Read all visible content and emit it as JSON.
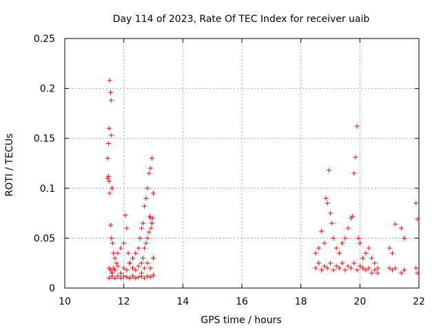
{
  "chart_data": {
    "type": "scatter",
    "title": "Day 114 of 2023, Rate Of TEC Index for receiver uaib",
    "xlabel": "GPS time / hours",
    "ylabel": "ROTI / TECUs",
    "xlim": [
      10,
      22
    ],
    "ylim": [
      0,
      0.25
    ],
    "xticks": [
      10,
      12,
      14,
      16,
      18,
      20,
      22
    ],
    "xtick_labels": [
      "10",
      "12",
      "14",
      "16",
      "18",
      "20",
      "22"
    ],
    "yticks": [
      0,
      0.05,
      0.1,
      0.15,
      0.2,
      0.25
    ],
    "ytick_labels": [
      "0",
      "0.05",
      "0.1",
      "0.15",
      "0.2",
      "0.25"
    ],
    "grid": true,
    "marker": "+",
    "color": "#ff0000",
    "series": [
      {
        "name": "ROTI",
        "x": [
          11.45,
          11.48,
          11.5,
          11.52,
          11.55,
          11.57,
          11.58,
          11.6,
          11.45,
          11.48,
          11.5,
          11.52,
          11.55,
          11.58,
          11.62,
          11.65,
          11.7,
          11.75,
          11.8,
          11.9,
          12.0,
          12.05,
          12.1,
          12.15,
          12.2,
          12.3,
          12.4,
          12.5,
          12.55,
          12.6,
          12.65,
          12.7,
          12.75,
          12.8,
          12.85,
          12.9,
          12.95,
          13.0,
          12.98,
          12.95,
          12.92,
          12.9,
          12.88,
          12.85,
          12.8,
          12.75,
          12.7,
          12.65,
          12.6,
          11.5,
          11.55,
          11.6,
          11.65,
          11.7,
          11.8,
          11.9,
          12.0,
          12.1,
          12.2,
          12.3,
          12.4,
          12.5,
          12.6,
          12.7,
          12.8,
          12.9,
          13.0,
          11.5,
          11.6,
          11.7,
          11.8,
          11.9,
          12.0,
          12.1,
          12.2,
          12.3,
          12.4,
          12.5,
          12.6,
          12.7,
          12.8,
          12.9,
          13.0,
          18.5,
          18.6,
          18.7,
          18.8,
          18.85,
          18.9,
          18.95,
          19.0,
          19.05,
          19.1,
          19.2,
          19.3,
          19.4,
          19.5,
          19.6,
          19.7,
          19.75,
          19.8,
          19.85,
          19.9,
          19.95,
          20.0,
          20.1,
          20.2,
          20.3,
          20.4,
          20.5,
          20.6,
          21.0,
          21.1,
          21.2,
          21.4,
          21.5,
          21.9,
          21.95,
          18.5,
          18.6,
          18.7,
          18.8,
          18.9,
          19.0,
          19.1,
          19.2,
          19.3,
          19.4,
          19.5,
          19.6,
          19.7,
          19.8,
          19.9,
          20.0,
          20.1,
          20.2,
          20.3,
          20.4,
          20.5,
          20.6,
          21.0,
          21.1,
          21.2,
          21.4,
          21.5,
          21.9,
          21.95
        ],
        "y": [
          0.13,
          0.145,
          0.16,
          0.208,
          0.196,
          0.188,
          0.153,
          0.1,
          0.11,
          0.112,
          0.107,
          0.095,
          0.063,
          0.05,
          0.045,
          0.035,
          0.03,
          0.025,
          0.035,
          0.04,
          0.045,
          0.073,
          0.06,
          0.035,
          0.025,
          0.03,
          0.035,
          0.04,
          0.05,
          0.06,
          0.065,
          0.082,
          0.09,
          0.1,
          0.115,
          0.12,
          0.13,
          0.095,
          0.07,
          0.065,
          0.06,
          0.07,
          0.072,
          0.056,
          0.05,
          0.045,
          0.04,
          0.03,
          0.025,
          0.02,
          0.018,
          0.015,
          0.02,
          0.018,
          0.022,
          0.015,
          0.02,
          0.018,
          0.025,
          0.02,
          0.018,
          0.022,
          0.015,
          0.02,
          0.025,
          0.02,
          0.03,
          0.01,
          0.012,
          0.01,
          0.012,
          0.01,
          0.012,
          0.011,
          0.01,
          0.012,
          0.01,
          0.011,
          0.012,
          0.01,
          0.012,
          0.011,
          0.013,
          0.035,
          0.04,
          0.057,
          0.045,
          0.09,
          0.085,
          0.118,
          0.075,
          0.065,
          0.05,
          0.04,
          0.035,
          0.045,
          0.05,
          0.06,
          0.07,
          0.072,
          0.115,
          0.131,
          0.162,
          0.05,
          0.045,
          0.03,
          0.035,
          0.04,
          0.03,
          0.025,
          0.02,
          0.04,
          0.035,
          0.064,
          0.06,
          0.05,
          0.085,
          0.069,
          0.02,
          0.025,
          0.018,
          0.022,
          0.02,
          0.025,
          0.018,
          0.022,
          0.02,
          0.025,
          0.018,
          0.022,
          0.02,
          0.025,
          0.018,
          0.022,
          0.02,
          0.018,
          0.02,
          0.015,
          0.018,
          0.015,
          0.02,
          0.018,
          0.02,
          0.015,
          0.018,
          0.02,
          0.015
        ]
      }
    ]
  }
}
